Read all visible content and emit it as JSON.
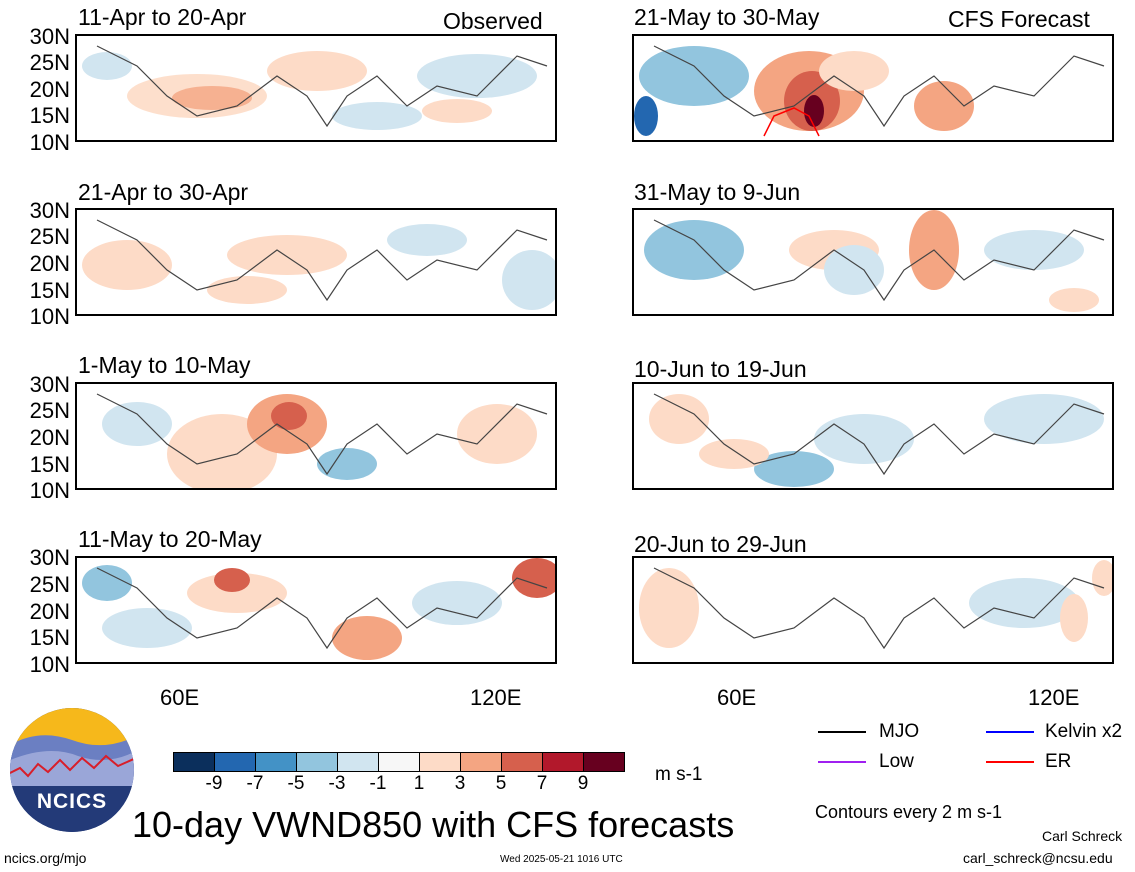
{
  "header": {
    "observed_label": "Observed",
    "forecast_label": "CFS Forecast"
  },
  "panels": {
    "left": [
      {
        "title": "11-Apr to 20-Apr"
      },
      {
        "title": "21-Apr to 30-Apr"
      },
      {
        "title": "1-May to 10-May"
      },
      {
        "title": "11-May to 20-May"
      }
    ],
    "right": [
      {
        "title": "21-May to 30-May"
      },
      {
        "title": "31-May to 9-Jun"
      },
      {
        "title": "10-Jun to 19-Jun"
      },
      {
        "title": "20-Jun to 29-Jun"
      }
    ]
  },
  "axes": {
    "y_ticks": [
      "30N",
      "25N",
      "20N",
      "15N",
      "10N"
    ],
    "x_ticks": [
      "60E",
      "120E"
    ]
  },
  "colorbar": {
    "labels": [
      "-9",
      "-7",
      "-5",
      "-3",
      "-1",
      "1",
      "3",
      "5",
      "7",
      "9"
    ],
    "colors": [
      "#0b2f5c",
      "#2367b0",
      "#4392c6",
      "#92c5de",
      "#d1e5f0",
      "#f7f7f7",
      "#fddbc7",
      "#f4a582",
      "#d6604d",
      "#b2182b",
      "#67001f"
    ],
    "units": "m s-1"
  },
  "legend": {
    "items": [
      {
        "label": "MJO",
        "color": "#000000"
      },
      {
        "label": "Kelvin x2",
        "color": "#0000ff"
      },
      {
        "label": "Low",
        "color": "#a020f0"
      },
      {
        "label": "ER",
        "color": "#ff0000"
      }
    ],
    "contours_note": "Contours every 2 m s-1"
  },
  "footer": {
    "logo_text": "NCICS",
    "title": "10-day VWND850 with CFS forecasts",
    "url": "ncics.org/mjo",
    "timestamp": "Wed 2025-05-21 1016 UTC",
    "author": "Carl Schreck",
    "email": "carl_schreck@ncsu.edu"
  }
}
